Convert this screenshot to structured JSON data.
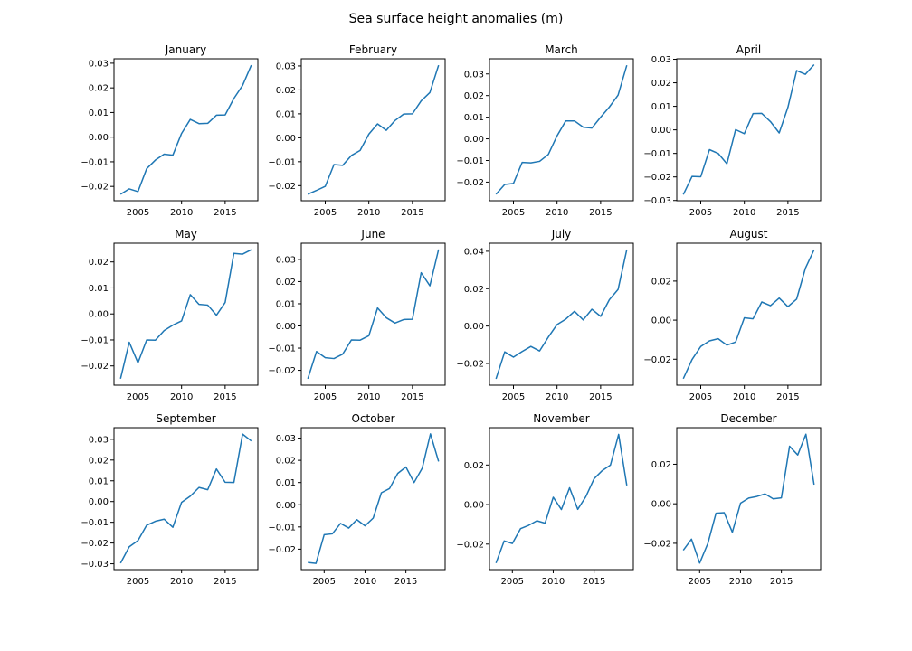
{
  "chart_data": {
    "type": "line",
    "title": "Sea surface height anomalies (m)",
    "panels": [
      {
        "title": "January",
        "x": [
          2003,
          2004,
          2005,
          2006,
          2007,
          2008,
          2009,
          2010,
          2011,
          2012,
          2013,
          2014,
          2015,
          2016,
          2017,
          2018
        ],
        "y": [
          -0.0232,
          -0.021,
          -0.0221,
          -0.0128,
          -0.0093,
          -0.0069,
          -0.0073,
          0.0015,
          0.0072,
          0.0055,
          0.0056,
          0.0089,
          0.009,
          0.0157,
          0.021,
          0.0292
        ],
        "xlim": [
          2002.25,
          2018.75
        ],
        "ylim": [
          -0.0258,
          0.0318
        ],
        "xticks": [
          2005,
          2010,
          2015
        ],
        "xtick_labels": [
          "2005",
          "2010",
          "2015"
        ],
        "yticks": [
          -0.02,
          -0.01,
          0.0,
          0.01,
          0.02,
          0.03
        ],
        "ytick_labels": [
          "−0.02",
          "−0.01",
          "0.00",
          "0.01",
          "0.02",
          "0.03"
        ]
      },
      {
        "title": "February",
        "x": [
          2003,
          2004,
          2005,
          2006,
          2007,
          2008,
          2009,
          2010,
          2011,
          2012,
          2013,
          2014,
          2015,
          2016,
          2017,
          2018
        ],
        "y": [
          -0.0236,
          -0.022,
          -0.0203,
          -0.0112,
          -0.0115,
          -0.0074,
          -0.0053,
          0.0015,
          0.0058,
          0.0031,
          0.0072,
          0.0099,
          0.01,
          0.0154,
          0.0189,
          0.0303
        ],
        "xlim": [
          2002.25,
          2018.75
        ],
        "ylim": [
          -0.0263,
          0.033
        ],
        "xticks": [
          2005,
          2010,
          2015
        ],
        "xtick_labels": [
          "2005",
          "2010",
          "2015"
        ],
        "yticks": [
          -0.02,
          -0.01,
          0.0,
          0.01,
          0.02,
          0.03
        ],
        "ytick_labels": [
          "−0.02",
          "−0.01",
          "0.00",
          "0.01",
          "0.02",
          "0.03"
        ]
      },
      {
        "title": "March",
        "x": [
          2003,
          2004,
          2005,
          2006,
          2007,
          2008,
          2009,
          2010,
          2011,
          2012,
          2013,
          2014,
          2015,
          2016,
          2017,
          2018
        ],
        "y": [
          -0.0256,
          -0.0211,
          -0.0206,
          -0.0109,
          -0.0111,
          -0.0104,
          -0.0072,
          0.0014,
          0.0083,
          0.0083,
          0.0054,
          0.005,
          0.01,
          0.0147,
          0.0202,
          0.034
        ],
        "xlim": [
          2002.25,
          2018.75
        ],
        "ylim": [
          -0.0286,
          0.037
        ],
        "xticks": [
          2005,
          2010,
          2015
        ],
        "xtick_labels": [
          "2005",
          "2010",
          "2015"
        ],
        "yticks": [
          -0.02,
          -0.01,
          0.0,
          0.01,
          0.02,
          0.03
        ],
        "ytick_labels": [
          "−0.02",
          "−0.01",
          "0.00",
          "0.01",
          "0.02",
          "0.03"
        ]
      },
      {
        "title": "April",
        "x": [
          2003,
          2004,
          2005,
          2006,
          2007,
          2008,
          2009,
          2010,
          2011,
          2012,
          2013,
          2014,
          2015,
          2016,
          2017,
          2018
        ],
        "y": [
          -0.0275,
          -0.0198,
          -0.0199,
          -0.0084,
          -0.01,
          -0.0144,
          0.0001,
          -0.0016,
          0.0069,
          0.007,
          0.0035,
          -0.0013,
          0.0096,
          0.0252,
          0.0236,
          0.0277
        ],
        "xlim": [
          2002.25,
          2018.75
        ],
        "ylim": [
          -0.0301,
          0.0302
        ],
        "xticks": [
          2005,
          2010,
          2015
        ],
        "xtick_labels": [
          "2005",
          "2010",
          "2015"
        ],
        "yticks": [
          -0.03,
          -0.02,
          -0.01,
          0.0,
          0.01,
          0.02,
          0.03
        ],
        "ytick_labels": [
          "−0.03",
          "−0.02",
          "−0.01",
          "0.00",
          "0.01",
          "0.02",
          "0.03"
        ]
      },
      {
        "title": "May",
        "x": [
          2003,
          2004,
          2005,
          2006,
          2007,
          2008,
          2009,
          2010,
          2011,
          2012,
          2013,
          2014,
          2015,
          2016,
          2017,
          2018
        ],
        "y": [
          -0.0249,
          -0.0109,
          -0.0188,
          -0.01,
          -0.0101,
          -0.0064,
          -0.0043,
          -0.0027,
          0.0074,
          0.0037,
          0.0034,
          -0.0005,
          0.0044,
          0.0233,
          0.023,
          0.0247
        ],
        "xlim": [
          2002.25,
          2018.75
        ],
        "ylim": [
          -0.0274,
          0.0272
        ],
        "xticks": [
          2005,
          2010,
          2015
        ],
        "xtick_labels": [
          "2005",
          "2010",
          "2015"
        ],
        "yticks": [
          -0.02,
          -0.01,
          0.0,
          0.01,
          0.02
        ],
        "ytick_labels": [
          "−0.02",
          "−0.01",
          "0.00",
          "0.01",
          "0.02"
        ]
      },
      {
        "title": "June",
        "x": [
          2003,
          2004,
          2005,
          2006,
          2007,
          2008,
          2009,
          2010,
          2011,
          2012,
          2013,
          2014,
          2015,
          2016,
          2017,
          2018
        ],
        "y": [
          -0.0238,
          -0.0115,
          -0.0143,
          -0.0147,
          -0.0127,
          -0.0063,
          -0.0064,
          -0.0044,
          0.0081,
          0.0037,
          0.0013,
          0.0029,
          0.003,
          0.024,
          0.0181,
          0.0345
        ],
        "xlim": [
          2002.25,
          2018.75
        ],
        "ylim": [
          -0.0267,
          0.0373
        ],
        "xticks": [
          2005,
          2010,
          2015
        ],
        "xtick_labels": [
          "2005",
          "2010",
          "2015"
        ],
        "yticks": [
          -0.02,
          -0.01,
          0.0,
          0.01,
          0.02,
          0.03
        ],
        "ytick_labels": [
          "−0.02",
          "−0.01",
          "0.00",
          "0.01",
          "0.02",
          "0.03"
        ]
      },
      {
        "title": "July",
        "x": [
          2003,
          2004,
          2005,
          2006,
          2007,
          2008,
          2009,
          2010,
          2011,
          2012,
          2013,
          2014,
          2015,
          2016,
          2017,
          2018
        ],
        "y": [
          -0.0282,
          -0.0138,
          -0.0166,
          -0.0136,
          -0.0109,
          -0.0133,
          -0.0059,
          0.0008,
          0.0037,
          0.0079,
          0.0033,
          0.009,
          0.0052,
          0.0141,
          0.0196,
          0.0409
        ],
        "xlim": [
          2002.25,
          2018.75
        ],
        "ylim": [
          -0.0316,
          0.0443
        ],
        "xticks": [
          2005,
          2010,
          2015
        ],
        "xtick_labels": [
          "2005",
          "2010",
          "2015"
        ],
        "yticks": [
          -0.02,
          0.0,
          0.02,
          0.04
        ],
        "ytick_labels": [
          "−0.02",
          "0.00",
          "0.02",
          "0.04"
        ]
      },
      {
        "title": "August",
        "x": [
          2003,
          2004,
          2005,
          2006,
          2007,
          2008,
          2009,
          2010,
          2011,
          2012,
          2013,
          2014,
          2015,
          2016,
          2017,
          2018
        ],
        "y": [
          -0.03,
          -0.0202,
          -0.0135,
          -0.0106,
          -0.0095,
          -0.0128,
          -0.0112,
          0.0012,
          0.0007,
          0.0093,
          0.0074,
          0.0113,
          0.0069,
          0.0108,
          0.0265,
          0.0361
        ],
        "xlim": [
          2002.25,
          2018.75
        ],
        "ylim": [
          -0.0333,
          0.0394
        ],
        "xticks": [
          2005,
          2010,
          2015
        ],
        "xtick_labels": [
          "2005",
          "2010",
          "2015"
        ],
        "yticks": [
          -0.02,
          0.0,
          0.02
        ],
        "ytick_labels": [
          "−0.02",
          "0.00",
          "0.02"
        ]
      },
      {
        "title": "September",
        "x": [
          2003,
          2004,
          2005,
          2006,
          2007,
          2008,
          2009,
          2010,
          2011,
          2012,
          2013,
          2014,
          2015,
          2016,
          2017,
          2018
        ],
        "y": [
          -0.0297,
          -0.0218,
          -0.0188,
          -0.0114,
          -0.0095,
          -0.0085,
          -0.0124,
          -0.0004,
          0.0026,
          0.0068,
          0.0057,
          0.0157,
          0.0093,
          0.0092,
          0.0325,
          0.0292
        ],
        "xlim": [
          2002.25,
          2018.75
        ],
        "ylim": [
          -0.0328,
          0.0356
        ],
        "xticks": [
          2005,
          2010,
          2015
        ],
        "xtick_labels": [
          "2005",
          "2010",
          "2015"
        ],
        "yticks": [
          -0.03,
          -0.02,
          -0.01,
          0.0,
          0.01,
          0.02,
          0.03
        ],
        "ytick_labels": [
          "−0.03",
          "−0.02",
          "−0.01",
          "0.00",
          "0.01",
          "0.02",
          "0.03"
        ]
      },
      {
        "title": "October",
        "x": [
          2003,
          2004,
          2005,
          2006,
          2007,
          2008,
          2009,
          2010,
          2011,
          2012,
          2013,
          2014,
          2015,
          2016,
          2017,
          2018,
          2019
        ],
        "y": [
          -0.026,
          -0.0264,
          -0.0135,
          -0.0131,
          -0.0084,
          -0.0105,
          -0.0067,
          -0.0095,
          -0.006,
          0.0054,
          0.0073,
          0.0141,
          0.017,
          0.01,
          0.0165,
          0.0319,
          0.0195
        ],
        "xlim": [
          2002.2,
          2019.8
        ],
        "ylim": [
          -0.0292,
          0.0347
        ],
        "xticks": [
          2005,
          2010,
          2015
        ],
        "xtick_labels": [
          "2005",
          "2010",
          "2015"
        ],
        "yticks": [
          -0.02,
          -0.01,
          0.0,
          0.01,
          0.02,
          0.03
        ],
        "ytick_labels": [
          "−0.02",
          "−0.01",
          "0.00",
          "0.01",
          "0.02",
          "0.03"
        ]
      },
      {
        "title": "November",
        "x": [
          2003,
          2004,
          2005,
          2006,
          2007,
          2008,
          2009,
          2010,
          2011,
          2012,
          2013,
          2014,
          2015,
          2016,
          2017,
          2018,
          2019
        ],
        "y": [
          -0.0296,
          -0.0184,
          -0.0197,
          -0.0122,
          -0.0105,
          -0.0082,
          -0.0094,
          0.0037,
          -0.0025,
          0.0085,
          -0.0024,
          0.0041,
          0.0131,
          0.0172,
          0.02,
          0.0355,
          0.0097
        ],
        "xlim": [
          2002.2,
          2019.8
        ],
        "ylim": [
          -0.0329,
          0.0389
        ],
        "xticks": [
          2005,
          2010,
          2015
        ],
        "xtick_labels": [
          "2005",
          "2010",
          "2015"
        ],
        "yticks": [
          -0.02,
          0.0,
          0.02
        ],
        "ytick_labels": [
          "−0.02",
          "0.00",
          "0.02"
        ]
      },
      {
        "title": "December",
        "x": [
          2003,
          2004,
          2005,
          2006,
          2007,
          2008,
          2009,
          2010,
          2011,
          2012,
          2013,
          2014,
          2015,
          2016,
          2017,
          2018,
          2019
        ],
        "y": [
          -0.0235,
          -0.0179,
          -0.03,
          -0.0201,
          -0.0048,
          -0.0045,
          -0.0144,
          0.0003,
          0.0029,
          0.0037,
          0.005,
          0.0025,
          0.003,
          0.0291,
          0.0247,
          0.0352,
          0.0097
        ],
        "xlim": [
          2002.2,
          2019.8
        ],
        "ylim": [
          -0.0333,
          0.0385
        ],
        "xticks": [
          2005,
          2010,
          2015
        ],
        "xtick_labels": [
          "2005",
          "2010",
          "2015"
        ],
        "yticks": [
          -0.02,
          0.0,
          0.02
        ],
        "ytick_labels": [
          "−0.02",
          "0.00",
          "0.02"
        ]
      }
    ]
  },
  "colors": {
    "line": "#1f77b4",
    "axes": "#000000",
    "background": "#ffffff"
  }
}
